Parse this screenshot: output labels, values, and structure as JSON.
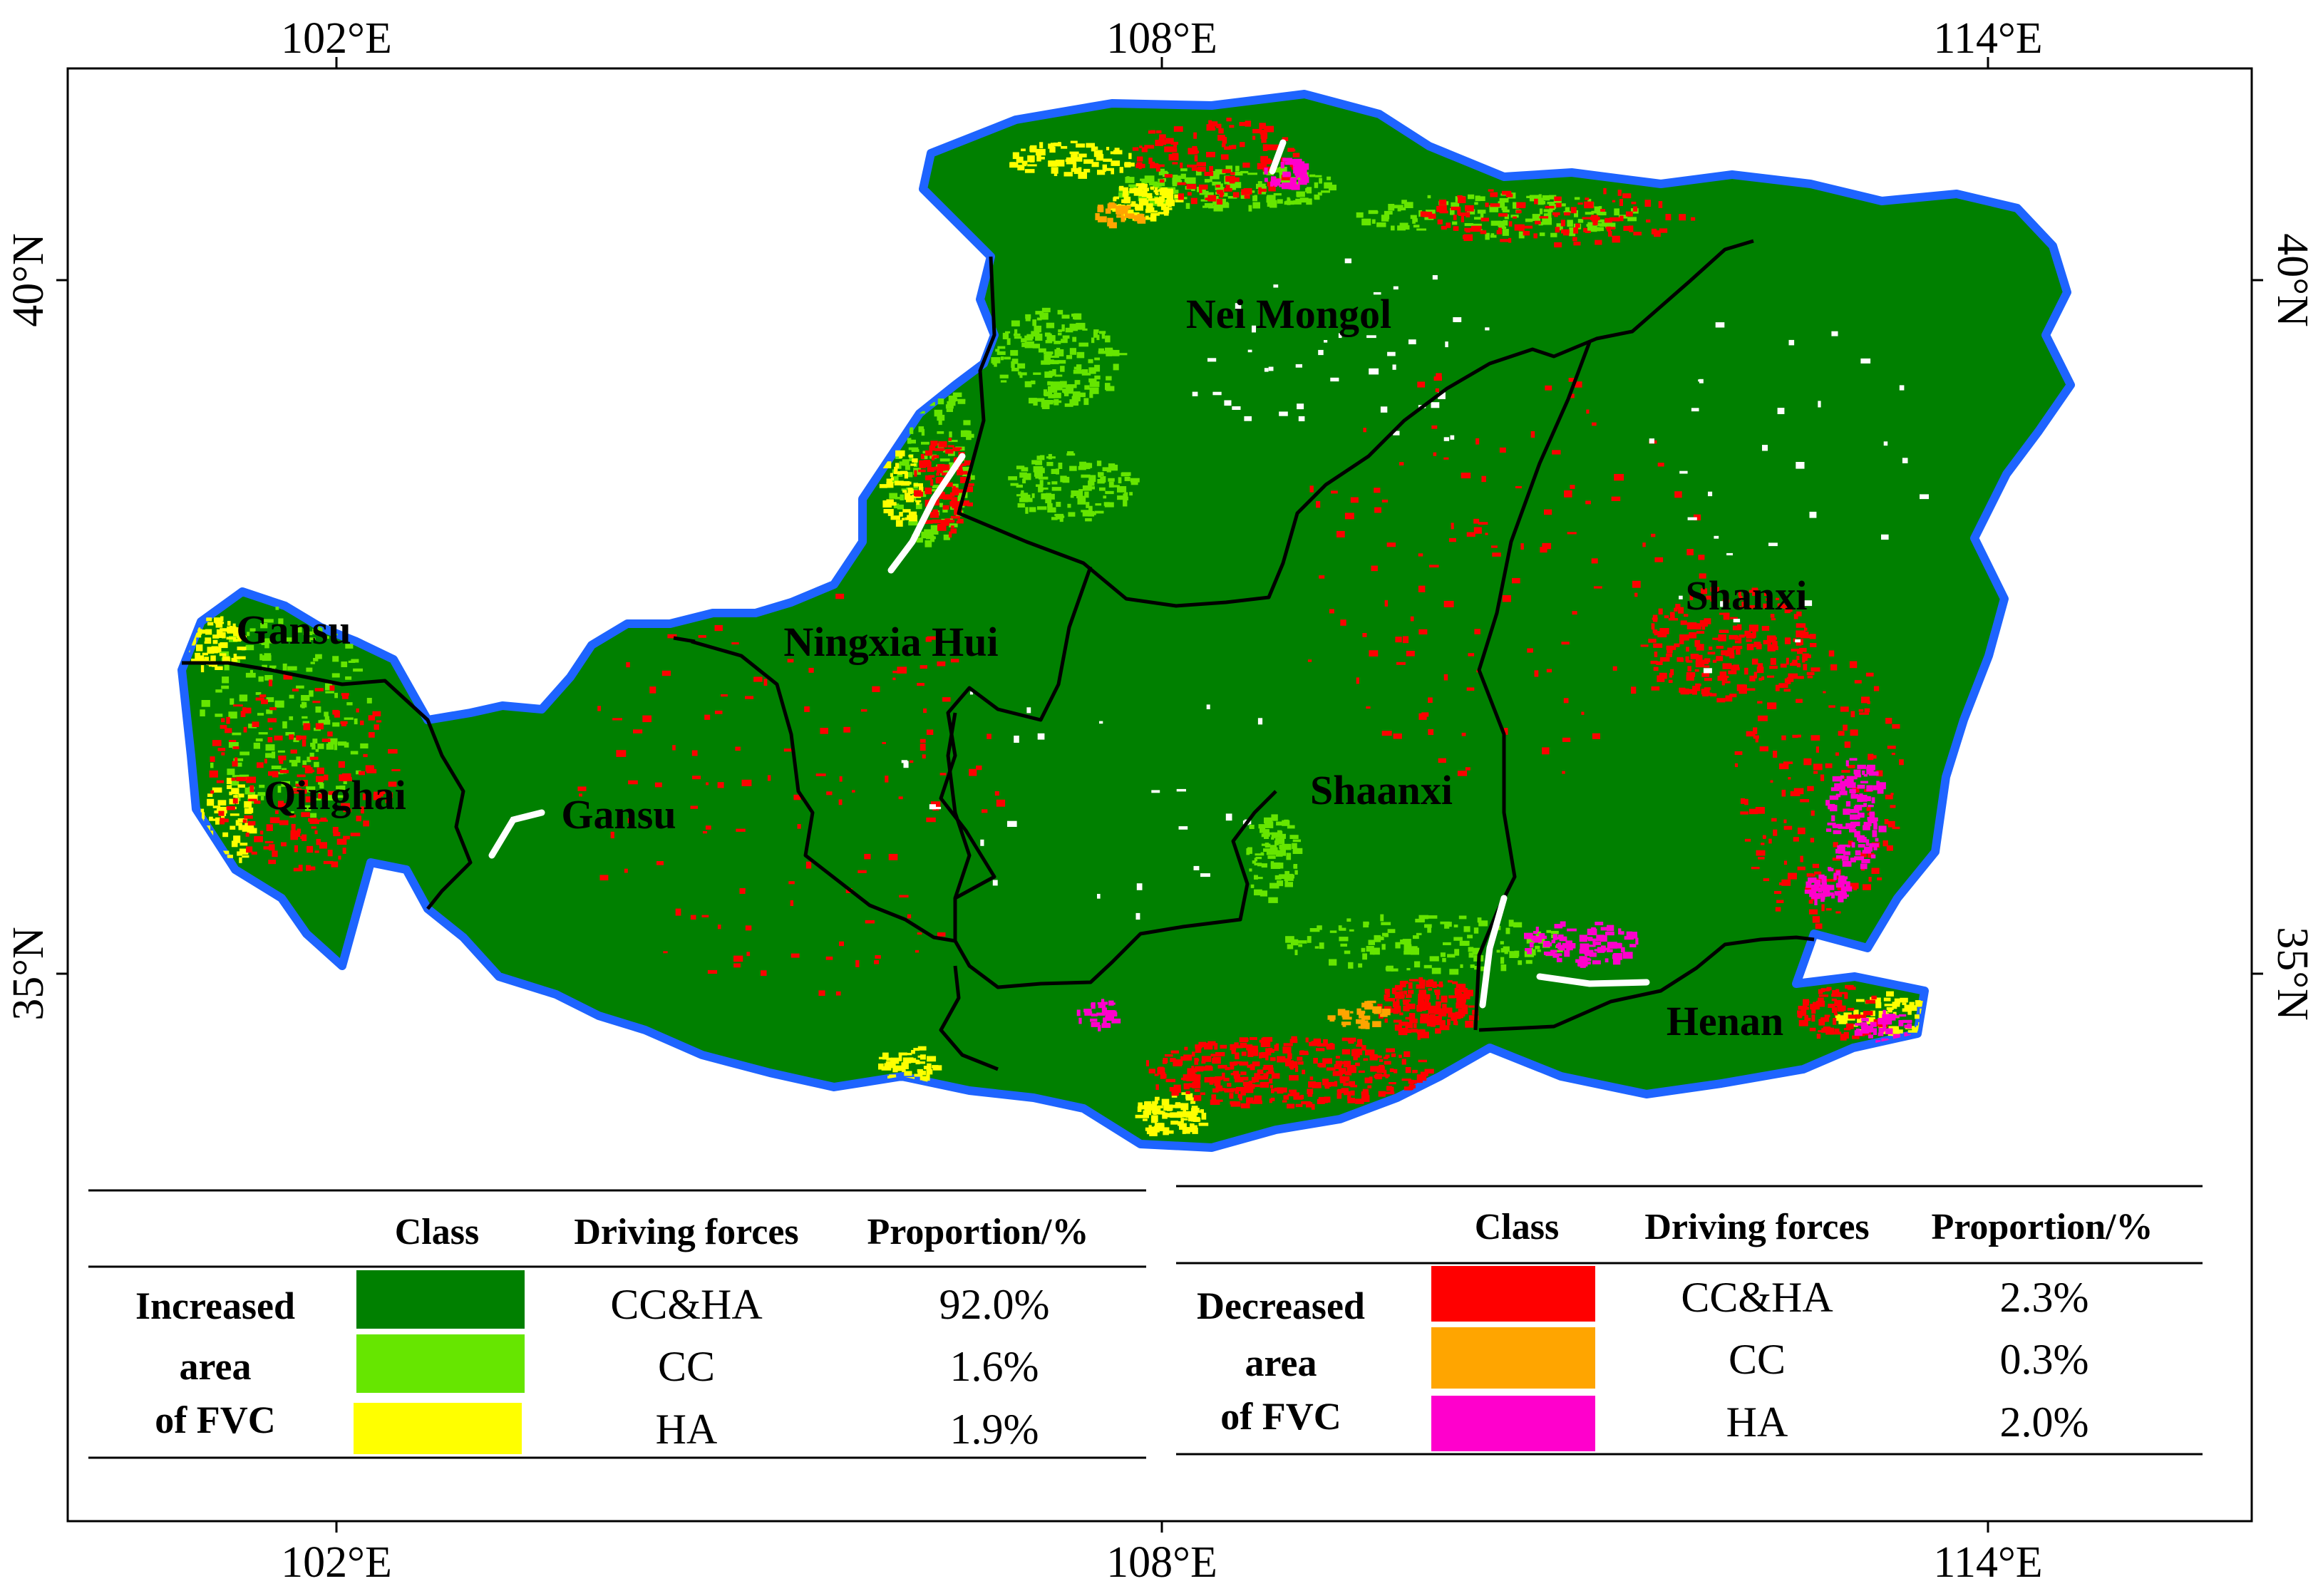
{
  "axes": {
    "longitude_ticks": [
      "102°E",
      "108°E",
      "114°E"
    ],
    "latitude_ticks": [
      "40°N",
      "35°N"
    ]
  },
  "regions": [
    "Nei Mongol",
    "Ningxia Hui",
    "Gansu",
    "Gansu",
    "Qinghai",
    "Shaanxi",
    "Shanxi",
    "Henan"
  ],
  "colors": {
    "cc_ha_increase": "#008000",
    "cc_increase": "#66e600",
    "ha_increase": "#ffff00",
    "cc_ha_decrease": "#ff0000",
    "cc_decrease": "#ffa500",
    "ha_decrease": "#ff00cc",
    "outline": "#1e64ff",
    "boundary": "#000000",
    "no_data": "#ffffff"
  },
  "legend": {
    "headers": {
      "class": "Class",
      "forces": "Driving forces",
      "proportion": "Proportion/%"
    },
    "increased": {
      "group_lines": [
        "Increased",
        "area",
        "of FVC"
      ],
      "rows": [
        {
          "force": "CC&HA",
          "proportion": "92.0%",
          "color": "#008000"
        },
        {
          "force": "CC",
          "proportion": "1.6%",
          "color": "#66e600"
        },
        {
          "force": "HA",
          "proportion": "1.9%",
          "color": "#ffff00"
        }
      ]
    },
    "decreased": {
      "group_lines": [
        "Decreased",
        "area",
        "of FVC"
      ],
      "rows": [
        {
          "force": "CC&HA",
          "proportion": "2.3%",
          "color": "#ff0000"
        },
        {
          "force": "CC",
          "proportion": "0.3%",
          "color": "#ffa500"
        },
        {
          "force": "HA",
          "proportion": "2.0%",
          "color": "#ff00cc"
        }
      ]
    }
  }
}
